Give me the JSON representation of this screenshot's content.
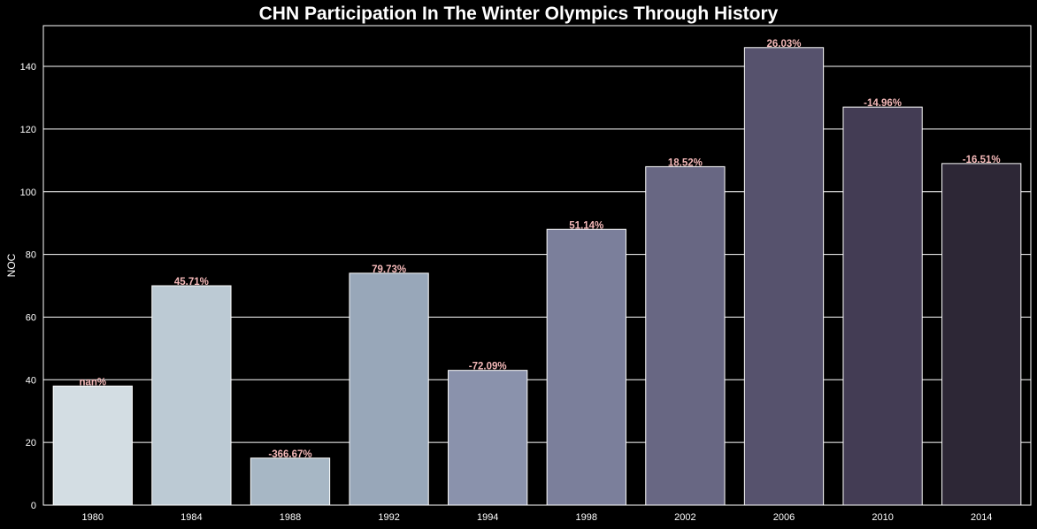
{
  "chart_data": {
    "type": "bar",
    "title": "CHN Participation In The Winter Olympics Through History",
    "xlabel": "",
    "ylabel": "NOC",
    "categories": [
      "1980",
      "1984",
      "1988",
      "1992",
      "1994",
      "1998",
      "2002",
      "2006",
      "2010",
      "2014"
    ],
    "values": [
      38,
      70,
      15,
      74,
      43,
      88,
      108,
      146,
      127,
      109
    ],
    "data_labels": [
      "nan%",
      "45.71%",
      "-366.67%",
      "79.73%",
      "-72.09%",
      "51.14%",
      "18.52%",
      "26.03%",
      "-14.96%",
      "-16.51%"
    ],
    "yticks": [
      0,
      20,
      40,
      60,
      80,
      100,
      120,
      140
    ],
    "ylim": [
      0,
      153
    ],
    "grid": true,
    "background": "#000000",
    "bar_colors": [
      "#d3dde3",
      "#bccad4",
      "#a7b7c5",
      "#98a7b9",
      "#8a92ac",
      "#7b7f9b",
      "#686783",
      "#56526d",
      "#433c54",
      "#2d2736"
    ],
    "label_color": "#f4b8b8"
  }
}
